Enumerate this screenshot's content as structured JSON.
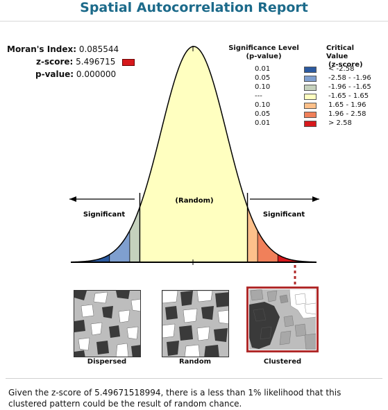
{
  "report": {
    "title": "Spatial Autocorrelation Report",
    "morans_index_label": "Moran's Index:",
    "morans_index_value": "0.085544",
    "zscore_label": "z-score:",
    "zscore_value": "5.496715",
    "pvalue_label": "p-value:",
    "pvalue_value": "0.000000"
  },
  "legend": {
    "sig_header_1": "Significance Level",
    "sig_header_2": "(p-value)",
    "crit_header_1": "Critical Value",
    "crit_header_2": "(z-score)",
    "rows": [
      {
        "p": "0.01",
        "range": "< -2.58",
        "color": "#2c5aa0"
      },
      {
        "p": "0.05",
        "range": "-2.58 - -1.96",
        "color": "#7f9fcf"
      },
      {
        "p": "0.10",
        "range": "-1.96 - -1.65",
        "color": "#c5d1bd"
      },
      {
        "p": "---",
        "range": "-1.65 - 1.65",
        "color": "#ffffc0"
      },
      {
        "p": "0.10",
        "range": "1.65 - 1.96",
        "color": "#fdc08a"
      },
      {
        "p": "0.05",
        "range": "1.96 - 2.58",
        "color": "#f0805a"
      },
      {
        "p": "0.01",
        "range": "> 2.58",
        "color": "#d7191c"
      }
    ]
  },
  "curve": {
    "random_label": "(Random)",
    "left_label": "Significant",
    "right_label": "Significant"
  },
  "thumbnails": {
    "dispersed": "Dispersed",
    "random": "Random",
    "clustered": "Clustered"
  },
  "summary": "Given the z-score of 5.49671518994, there is a less than 1% likelihood that this clustered pattern could be the result of random chance."
}
